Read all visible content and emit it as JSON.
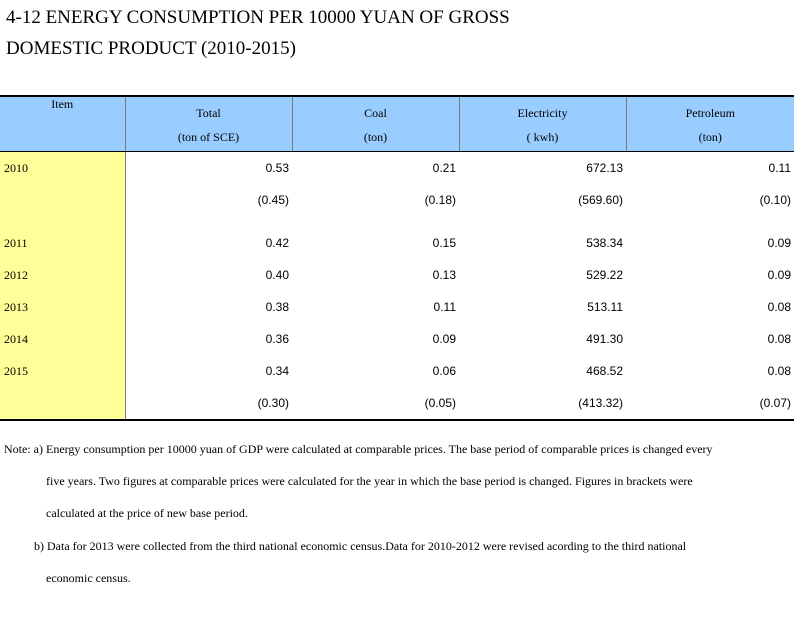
{
  "title": {
    "line1": "4-12  ENERGY CONSUMPTION PER 10000 YUAN OF GROSS",
    "line2": "DOMESTIC PRODUCT (2010-2015)"
  },
  "table": {
    "headers": [
      {
        "label": "Item",
        "unit": ""
      },
      {
        "label": "Total",
        "unit": "(ton of SCE)"
      },
      {
        "label": "Coal",
        "unit": "(ton)"
      },
      {
        "label": "Electricity",
        "unit": "( kwh)"
      },
      {
        "label": "Petroleum",
        "unit": "(ton)"
      }
    ],
    "rows": [
      {
        "year": "2010",
        "total": "0.53",
        "coal": "0.21",
        "electricity": "672.13",
        "petroleum": "0.11"
      },
      {
        "year": "",
        "total": "(0.45)",
        "coal": "(0.18)",
        "electricity": "(569.60)",
        "petroleum": "(0.10)"
      },
      {
        "year": "2011",
        "total": "0.42",
        "coal": "0.15",
        "electricity": "538.34",
        "petroleum": "0.09"
      },
      {
        "year": "2012",
        "total": "0.40",
        "coal": "0.13",
        "electricity": "529.22",
        "petroleum": "0.09"
      },
      {
        "year": "2013",
        "total": "0.38",
        "coal": "0.11",
        "electricity": "513.11",
        "petroleum": "0.08"
      },
      {
        "year": "2014",
        "total": "0.36",
        "coal": "0.09",
        "electricity": "491.30",
        "petroleum": "0.08"
      },
      {
        "year": "2015",
        "total": "0.34",
        "coal": "0.06",
        "electricity": "468.52",
        "petroleum": "0.08"
      },
      {
        "year": "",
        "total": "(0.30)",
        "coal": "(0.05)",
        "electricity": "(413.32)",
        "petroleum": "(0.07)"
      }
    ]
  },
  "notes": {
    "a1": "Note: a) Energy consumption per 10000 yuan of GDP were calculated at comparable prices. The base period of comparable prices is changed every",
    "a2": "five years. Two figures at comparable prices were calculated for the year in which the base period is changed. Figures in brackets were",
    "a3": "calculated at the price of new base period.",
    "b1": "b) Data for 2013 were collected from the third  national economic census.Data for 2010-2012 were revised acording to the third national",
    "b2": "economic census."
  }
}
